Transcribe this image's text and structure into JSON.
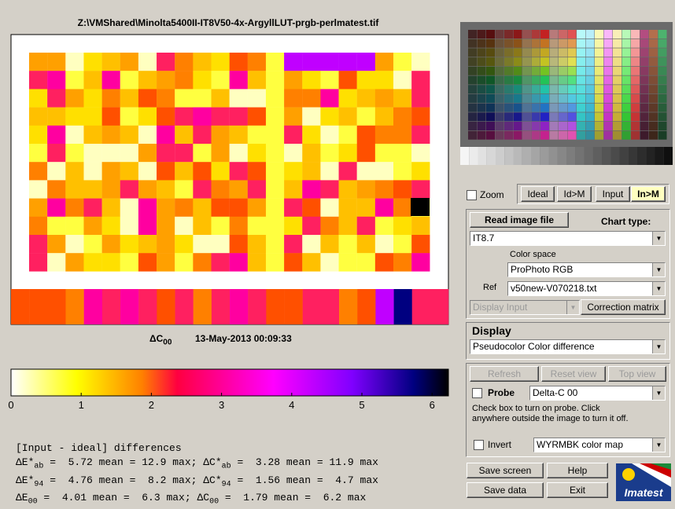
{
  "plot": {
    "title": "Z:\\VMShared\\Minolta5400II-IT8V50-4x-ArgyllLUT-prgb-perlmatest.tif",
    "metric": "ΔC",
    "metric_sub": "00",
    "timestamp": "13-May-2013 00:09:33"
  },
  "colorbar": {
    "ticks": [
      0,
      1,
      2,
      3,
      4,
      5,
      6
    ]
  },
  "stats": {
    "heading": "[Input - ideal] differences",
    "lines": [
      [
        "ΔE*",
        "ab",
        " =  5.72 mean = 12.9 max; ΔC*",
        "ab",
        " =  3.28 mean = 11.9 max"
      ],
      [
        "ΔE*",
        "94",
        " =  4.76 mean =  8.2 max; ΔC*",
        "94",
        " =  1.56 mean =  4.7 max"
      ],
      [
        "ΔE",
        "00",
        " =  4.01 mean =  6.3 max; ΔC",
        "00",
        " =  1.79 mean =  6.2 max"
      ]
    ]
  },
  "controls": {
    "zoom": "Zoom",
    "view_buttons": [
      "Ideal",
      "Id>M",
      "Input",
      "In>M"
    ],
    "read_image": "Read image file",
    "chart_type_label": "Chart type:",
    "chart_type": "IT8.7",
    "color_space_label": "Color space",
    "color_space": "ProPhoto RGB",
    "ref_label": "Ref",
    "ref": "v50new-V070218.txt",
    "display_input": "Display Input",
    "correction_matrix": "Correction matrix",
    "display_label": "Display",
    "display": "Pseudocolor Color difference",
    "refresh": "Refresh",
    "reset_view": "Reset view",
    "top_view": "Top view",
    "probe": "Probe",
    "probe_metric": "Delta-C 00",
    "probe_help": "Check box to turn on probe. Click anywhere outside the image to turn it off.",
    "invert": "Invert",
    "color_map": "WYRMBK color map",
    "save_screen": "Save screen",
    "help": "Help",
    "save_data": "Save data",
    "exit": "Exit",
    "logo": "Imatest"
  }
}
